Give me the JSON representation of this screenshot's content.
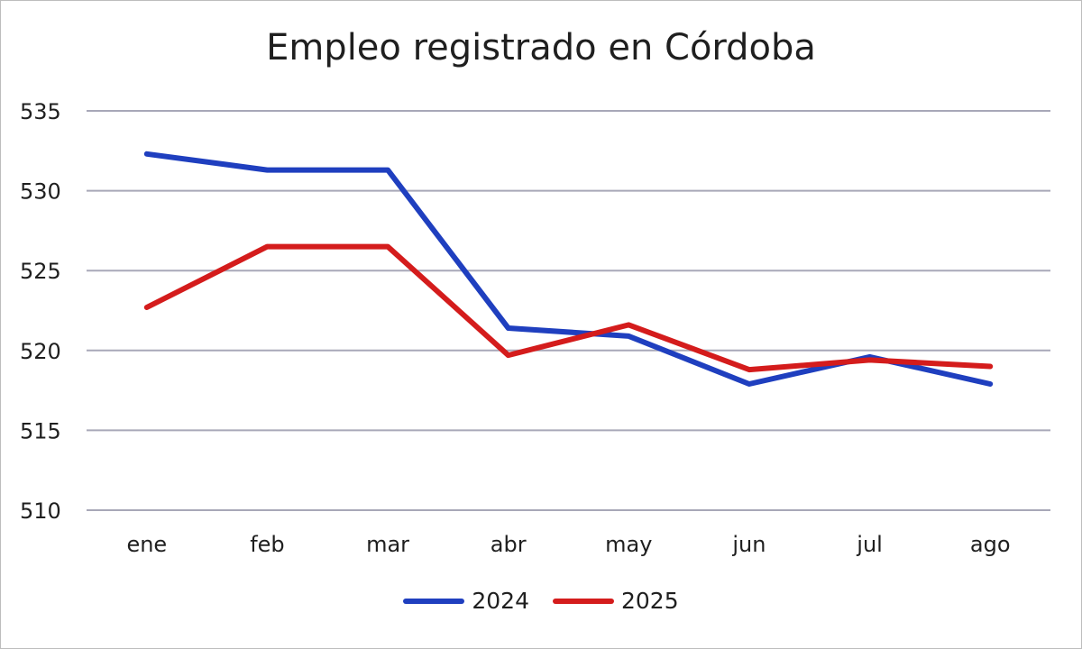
{
  "chart_data": {
    "type": "line",
    "title": "Empleo registrado en Córdoba",
    "xlabel": "",
    "ylabel": "",
    "categories": [
      "ene",
      "feb",
      "mar",
      "abr",
      "may",
      "jun",
      "jul",
      "ago"
    ],
    "ylim": [
      510,
      535
    ],
    "yticks": [
      "535",
      "530",
      "525",
      "520",
      "515",
      "510"
    ],
    "grid": true,
    "legend_position": "bottom",
    "series": [
      {
        "name": "2024",
        "color": "#1f3fbf",
        "values": [
          532.3,
          531.3,
          531.3,
          521.4,
          520.9,
          517.9,
          519.6,
          517.9
        ]
      },
      {
        "name": "2025",
        "color": "#d41c1c",
        "values": [
          522.7,
          526.5,
          526.5,
          519.7,
          521.6,
          518.8,
          519.4,
          519.0
        ]
      }
    ]
  }
}
